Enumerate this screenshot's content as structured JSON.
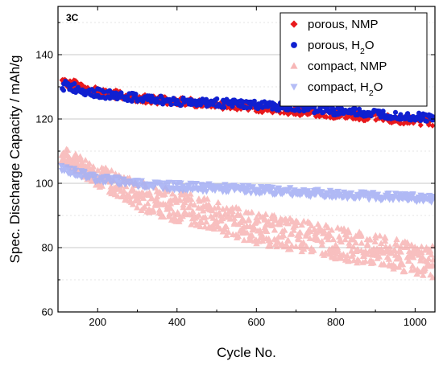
{
  "chart_data": {
    "type": "scatter",
    "annotation": "3C",
    "xlabel": "Cycle  No.",
    "ylabel": "Spec. Discharge Capacity  /  mAh/g",
    "xlim": [
      100,
      1050
    ],
    "ylim": [
      60,
      155
    ],
    "xticks": [
      200,
      400,
      600,
      800,
      1000
    ],
    "yticks": [
      60,
      80,
      100,
      120,
      140
    ],
    "ytick_labels": [
      "60",
      "80",
      "100",
      "120",
      "140"
    ],
    "xtick_labels": [
      "200",
      "400",
      "600",
      "800",
      "1000"
    ],
    "grid": "horizontal",
    "legend_position": "top-right",
    "series": [
      {
        "name": "porous, NMP",
        "legend_parts": [
          "porous, NMP"
        ],
        "marker": "diamond",
        "color": "#e8191c",
        "alpha": 1,
        "x": [
          110,
          200,
          300,
          400,
          500,
          600,
          700,
          800,
          900,
          1000,
          1045
        ],
        "y": [
          132,
          128.5,
          126.5,
          125.5,
          124.5,
          123.5,
          122.5,
          121.5,
          120.5,
          119.5,
          119
        ],
        "spread": [
          1.6,
          1.3,
          1.3,
          1.3,
          1.3,
          1.3,
          1.3,
          1.3,
          1.3,
          1.3,
          1.3
        ]
      },
      {
        "name": "porous, H2O",
        "legend_parts": [
          "porous, H",
          "2",
          "O"
        ],
        "marker": "circle",
        "color": "#1020d0",
        "alpha": 1,
        "x": [
          110,
          200,
          300,
          400,
          500,
          600,
          700,
          800,
          900,
          1000,
          1045
        ],
        "y": [
          130.5,
          128,
          126.5,
          125.5,
          125,
          124.3,
          123.5,
          122.5,
          121.7,
          120.8,
          120.3
        ],
        "spread": [
          1.6,
          1.4,
          1.3,
          1.3,
          1.3,
          1.3,
          1.3,
          1.3,
          1.3,
          1.3,
          1.3
        ]
      },
      {
        "name": "compact, NMP",
        "legend_parts": [
          "compact, NMP"
        ],
        "marker": "triangle-up",
        "color": "#f6aaaa",
        "alpha": 0.75,
        "x": [
          110,
          200,
          300,
          400,
          500,
          600,
          700,
          800,
          900,
          1000,
          1045
        ],
        "y": [
          109,
          102.5,
          96.5,
          93,
          89.5,
          86,
          84,
          81.5,
          79,
          76.5,
          75.5
        ],
        "spread": [
          2.5,
          3.5,
          4.5,
          5,
          5,
          5,
          5,
          5,
          5,
          5,
          5
        ]
      },
      {
        "name": "compact, H2O",
        "legend_parts": [
          "compact, H",
          "2",
          "O"
        ],
        "marker": "triangle-down",
        "color": "#a8b2f4",
        "alpha": 0.9,
        "x": [
          110,
          200,
          300,
          400,
          500,
          600,
          700,
          800,
          900,
          1000,
          1045
        ],
        "y": [
          104.5,
          101.5,
          100,
          99,
          98.5,
          98,
          97.3,
          96.5,
          96,
          95.5,
          95
        ],
        "spread": [
          1.2,
          1.2,
          1.2,
          1.2,
          1.2,
          1.2,
          1.2,
          1.2,
          1.2,
          1.2,
          1.2
        ]
      }
    ]
  }
}
